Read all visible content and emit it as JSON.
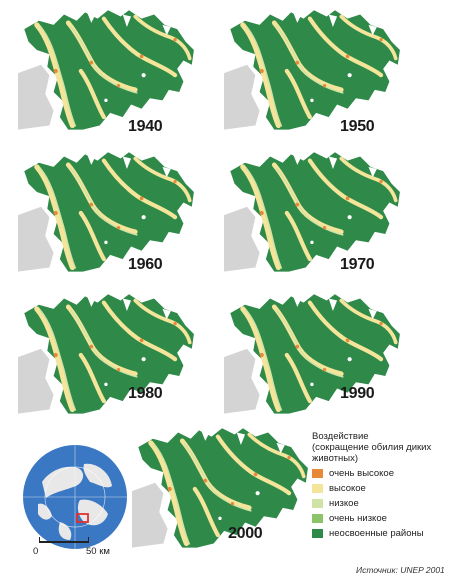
{
  "maps": [
    {
      "year": "1940"
    },
    {
      "year": "1950"
    },
    {
      "year": "1960"
    },
    {
      "year": "1970"
    },
    {
      "year": "1980"
    },
    {
      "year": "1990"
    },
    {
      "year": "2000"
    }
  ],
  "legend": {
    "title_line1": "Воздействие",
    "title_line2": "(сокращение обилия диких",
    "title_line3": "животных)",
    "items": [
      {
        "label": "очень высокое",
        "color": "#e8893a"
      },
      {
        "label": "высокое",
        "color": "#f4e59a"
      },
      {
        "label": "низкое",
        "color": "#cfe3a6"
      },
      {
        "label": "очень низкое",
        "color": "#8cc46a"
      },
      {
        "label": "неосвоенные районы",
        "color": "#2f8a4a"
      }
    ]
  },
  "scale": {
    "start": "0",
    "end": "50 км"
  },
  "source": "Источник: UNEP 2001",
  "colors": {
    "land_undeveloped": "#2f8a4a",
    "impact_very_high": "#e8893a",
    "impact_high": "#f4e59a",
    "impact_low": "#cfe3a6",
    "neighbour_land": "#d4d4d4",
    "globe_ocean": "#3b78c4"
  }
}
